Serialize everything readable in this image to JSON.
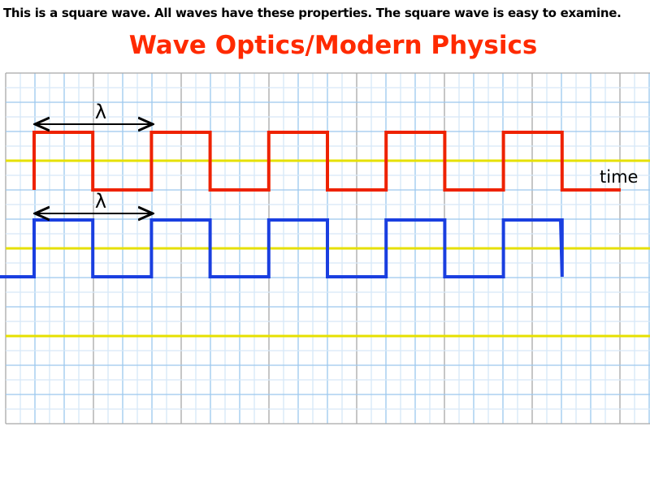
{
  "header": {
    "text": "This is a square wave. All waves have these properties. The square wave is easy to examine.",
    "title": "Wave Optics/Modern Physics"
  },
  "labels": {
    "wavelength_top": "λ",
    "wavelength_bottom": "λ",
    "time": "time"
  }
}
